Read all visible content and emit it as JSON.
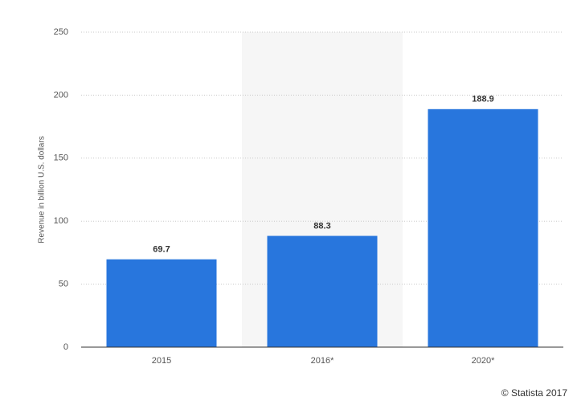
{
  "chart_data": {
    "type": "bar",
    "y_label": "Revenue in billion U.S. dollars",
    "categories": [
      "2015",
      "2016*",
      "2020*"
    ],
    "values": [
      69.7,
      88.3,
      188.9
    ],
    "color": "#2876dd",
    "ylim": [
      0,
      250
    ],
    "yticks": [
      0,
      50,
      100,
      150,
      200,
      250
    ],
    "grid": true,
    "source": "© Statista 2017"
  }
}
